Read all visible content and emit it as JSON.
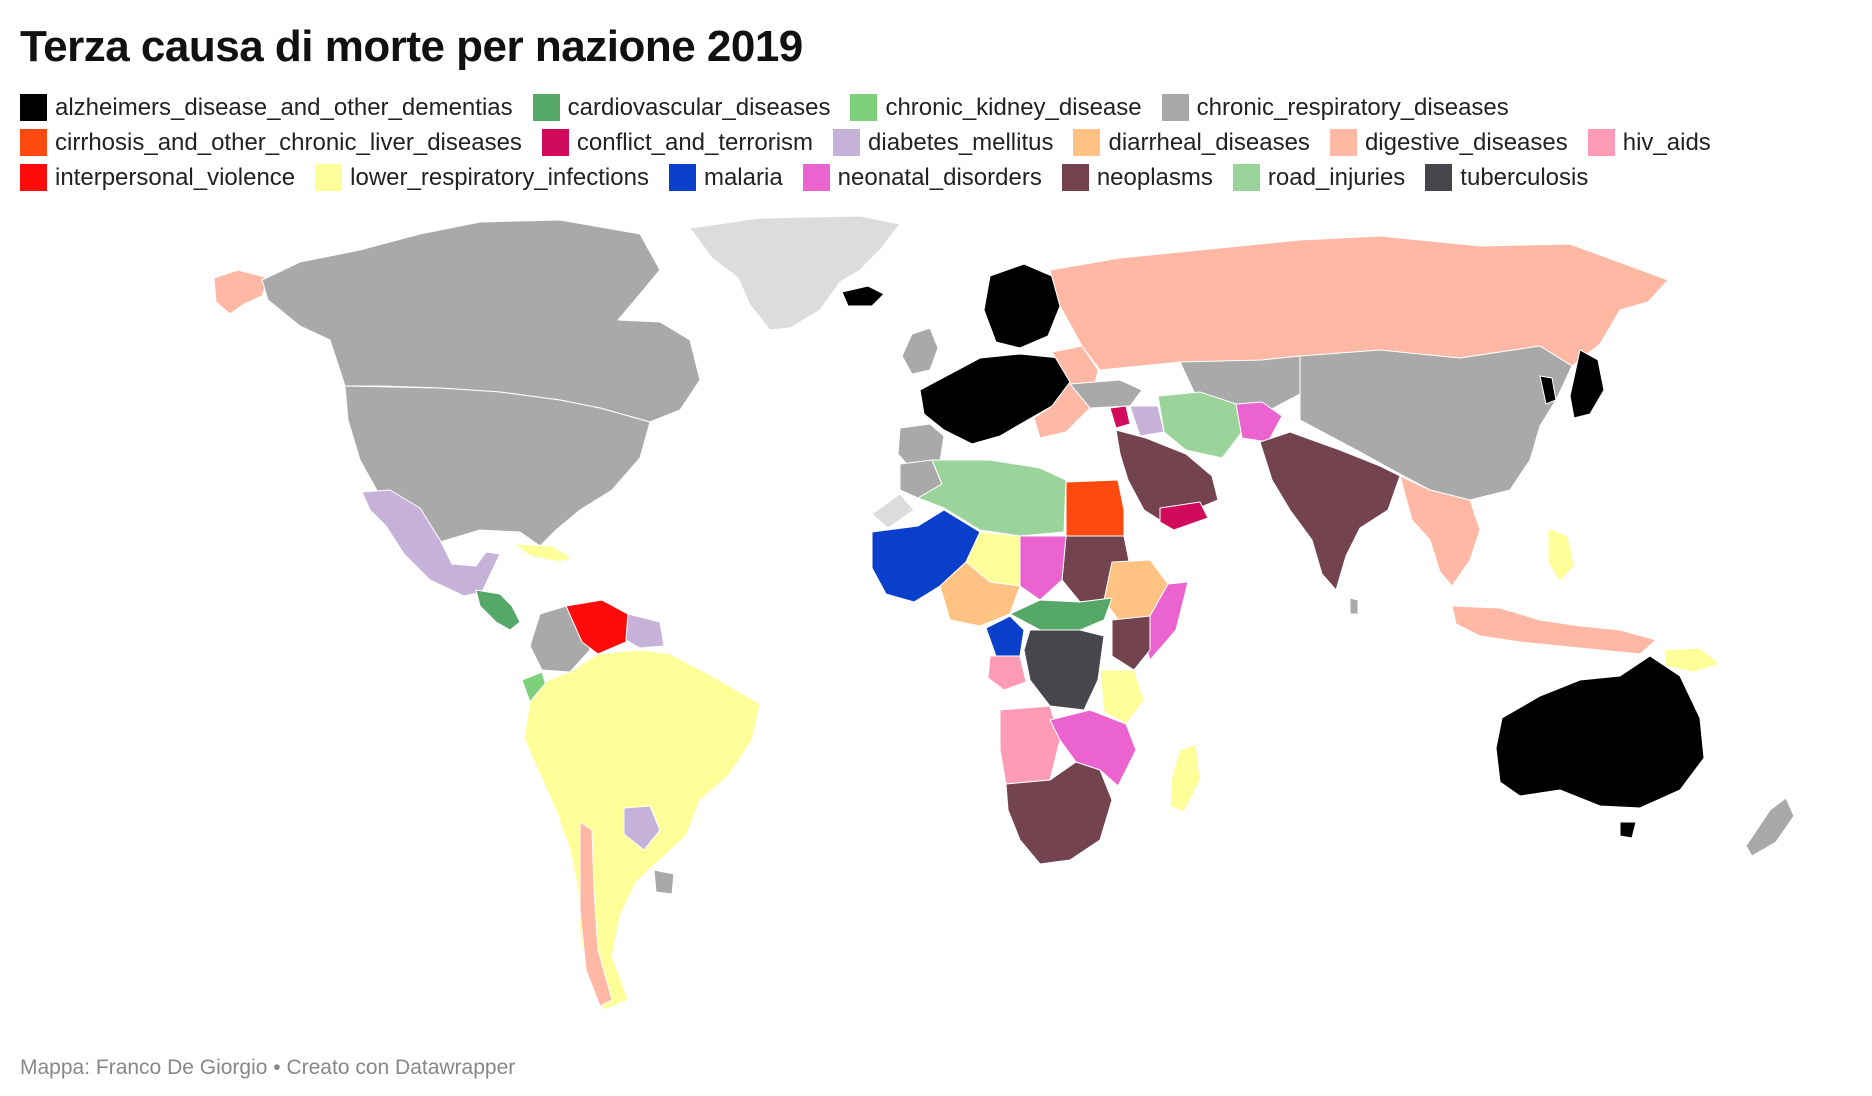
{
  "title": "Terza causa di morte per nazione 2019",
  "credit": "Mappa: Franco De Giorgio • Creato con Datawrapper",
  "legend": [
    [
      {
        "label": "alzheimers_disease_and_other_dementias",
        "color": "#000000"
      },
      {
        "label": "cardiovascular_diseases",
        "color": "#55a868"
      },
      {
        "label": "chronic_kidney_disease",
        "color": "#7fd07a"
      },
      {
        "label": "chronic_respiratory_diseases",
        "color": "#a9a9a9"
      }
    ],
    [
      {
        "label": "cirrhosis_and_other_chronic_liver_diseases",
        "color": "#ff4a0f"
      },
      {
        "label": "conflict_and_terrorism",
        "color": "#d10a5b"
      },
      {
        "label": "diabetes_mellitus",
        "color": "#c6b2d9"
      },
      {
        "label": "diarrheal_diseases",
        "color": "#ffc283"
      },
      {
        "label": "digestive_diseases",
        "color": "#ffb8a3"
      },
      {
        "label": "hiv_aids",
        "color": "#ff9bb6"
      }
    ],
    [
      {
        "label": "interpersonal_violence",
        "color": "#ff0b0b"
      },
      {
        "label": "lower_respiratory_infections",
        "color": "#ffff99"
      },
      {
        "label": "malaria",
        "color": "#0a3fcc"
      },
      {
        "label": "neonatal_disorders",
        "color": "#ea63cf"
      },
      {
        "label": "neoplasms",
        "color": "#744350"
      },
      {
        "label": "road_injuries",
        "color": "#9ad49a"
      },
      {
        "label": "tuberculosis",
        "color": "#46464c"
      }
    ]
  ],
  "colors": {
    "no_data": "#dcdcdc",
    "border": "#ffffff"
  }
}
